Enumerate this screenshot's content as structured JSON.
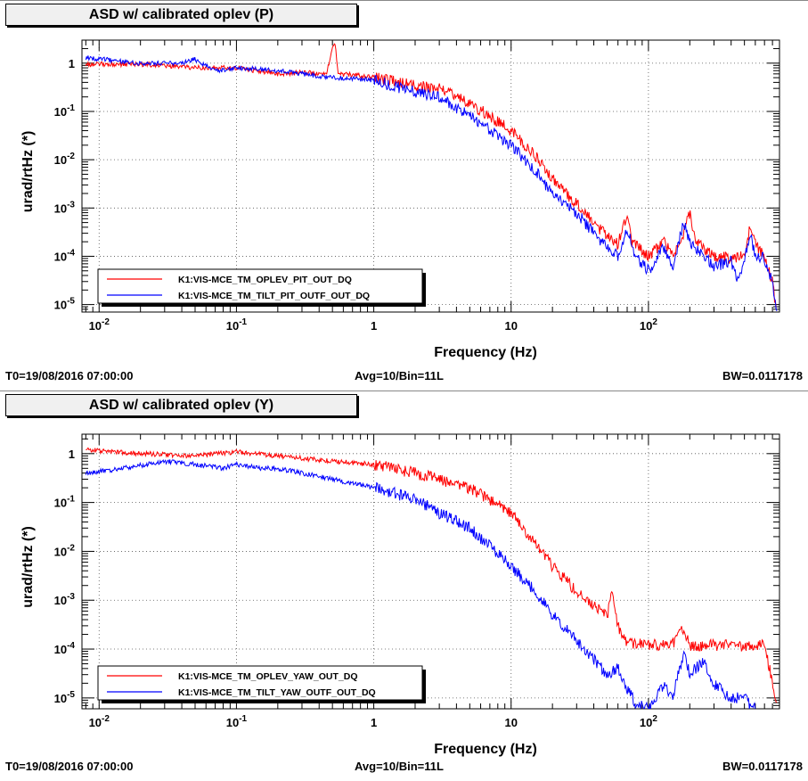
{
  "chart_data": [
    {
      "type": "line",
      "title": "ASD w/ calibrated oplev (P)",
      "xlabel": "Frequency (Hz)",
      "ylabel": "urad/rtHz (*)",
      "xscale": "log",
      "yscale": "log",
      "xlim": [
        0.0075,
        900
      ],
      "ylim": [
        7e-06,
        3
      ],
      "x_ticks": [
        {
          "value": 0.01,
          "label": "10",
          "exp": "-2"
        },
        {
          "value": 0.1,
          "label": "10",
          "exp": "-1"
        },
        {
          "value": 1,
          "label": "1",
          "exp": ""
        },
        {
          "value": 10,
          "label": "10",
          "exp": ""
        },
        {
          "value": 100,
          "label": "10",
          "exp": "2"
        }
      ],
      "y_ticks": [
        {
          "value": 1,
          "label": "1",
          "exp": ""
        },
        {
          "value": 0.1,
          "label": "10",
          "exp": "-1"
        },
        {
          "value": 0.01,
          "label": "10",
          "exp": "-2"
        },
        {
          "value": 0.001,
          "label": "10",
          "exp": "-3"
        },
        {
          "value": 0.0001,
          "label": "10",
          "exp": "-4"
        },
        {
          "value": 1e-05,
          "label": "10",
          "exp": "-5"
        }
      ],
      "grid": true,
      "legend_position": "bottom-left",
      "series": [
        {
          "name": "K1:VIS-MCE_TM_OPLEV_PIT_OUT_DQ",
          "color": "#ff0000",
          "points": [
            [
              0.008,
              0.95
            ],
            [
              0.02,
              0.95
            ],
            [
              0.05,
              0.8
            ],
            [
              0.1,
              0.8
            ],
            [
              0.2,
              0.6
            ],
            [
              0.3,
              0.65
            ],
            [
              0.45,
              0.6
            ],
            [
              0.5,
              2.0
            ],
            [
              0.52,
              3.0
            ],
            [
              0.55,
              0.6
            ],
            [
              0.8,
              0.55
            ],
            [
              1,
              0.5
            ],
            [
              2,
              0.35
            ],
            [
              3,
              0.3
            ],
            [
              5,
              0.15
            ],
            [
              10,
              0.04
            ],
            [
              15,
              0.012
            ],
            [
              20,
              0.004
            ],
            [
              30,
              0.0012
            ],
            [
              40,
              0.0005
            ],
            [
              50,
              0.00025
            ],
            [
              60,
              0.00018
            ],
            [
              65,
              0.0004
            ],
            [
              70,
              0.0008
            ],
            [
              75,
              0.0002
            ],
            [
              100,
              0.0001
            ],
            [
              130,
              0.0002
            ],
            [
              150,
              0.0001
            ],
            [
              180,
              0.0003
            ],
            [
              200,
              0.0008
            ],
            [
              220,
              0.0002
            ],
            [
              300,
              0.0001
            ],
            [
              400,
              9e-05
            ],
            [
              500,
              0.0001
            ],
            [
              550,
              0.0004
            ],
            [
              600,
              0.0002
            ],
            [
              700,
              9e-05
            ],
            [
              800,
              3e-05
            ],
            [
              850,
              8e-06
            ]
          ]
        },
        {
          "name": "K1:VIS-MCE_TM_TILT_PIT_OUTF_OUT_DQ",
          "color": "#0000ff",
          "points": [
            [
              0.008,
              1.3
            ],
            [
              0.02,
              1.0
            ],
            [
              0.04,
              1.0
            ],
            [
              0.05,
              1.2
            ],
            [
              0.07,
              0.7
            ],
            [
              0.1,
              0.8
            ],
            [
              0.2,
              0.7
            ],
            [
              0.3,
              0.6
            ],
            [
              0.5,
              0.5
            ],
            [
              1,
              0.45
            ],
            [
              2,
              0.25
            ],
            [
              3,
              0.2
            ],
            [
              5,
              0.08
            ],
            [
              10,
              0.02
            ],
            [
              15,
              0.006
            ],
            [
              20,
              0.002
            ],
            [
              30,
              0.0008
            ],
            [
              40,
              0.0003
            ],
            [
              50,
              0.00015
            ],
            [
              60,
              0.0001
            ],
            [
              70,
              0.0004
            ],
            [
              80,
              0.0001
            ],
            [
              100,
              5e-05
            ],
            [
              130,
              0.00015
            ],
            [
              150,
              6e-05
            ],
            [
              180,
              0.0005
            ],
            [
              200,
              0.0002
            ],
            [
              300,
              6e-05
            ],
            [
              400,
              8e-05
            ],
            [
              450,
              3e-05
            ],
            [
              500,
              8e-05
            ],
            [
              550,
              0.0003
            ],
            [
              600,
              0.0001
            ],
            [
              700,
              9e-05
            ],
            [
              800,
              3e-05
            ],
            [
              860,
              8e-06
            ]
          ]
        }
      ]
    },
    {
      "type": "line",
      "title": "ASD w/ calibrated oplev (Y)",
      "xlabel": "Frequency (Hz)",
      "ylabel": "urad/rtHz (*)",
      "xscale": "log",
      "yscale": "log",
      "xlim": [
        0.0075,
        900
      ],
      "ylim": [
        6e-06,
        2.5
      ],
      "x_ticks": [
        {
          "value": 0.01,
          "label": "10",
          "exp": "-2"
        },
        {
          "value": 0.1,
          "label": "10",
          "exp": "-1"
        },
        {
          "value": 1,
          "label": "1",
          "exp": ""
        },
        {
          "value": 10,
          "label": "10",
          "exp": ""
        },
        {
          "value": 100,
          "label": "10",
          "exp": "2"
        }
      ],
      "y_ticks": [
        {
          "value": 1,
          "label": "1",
          "exp": ""
        },
        {
          "value": 0.1,
          "label": "10",
          "exp": "-1"
        },
        {
          "value": 0.01,
          "label": "10",
          "exp": "-2"
        },
        {
          "value": 0.001,
          "label": "10",
          "exp": "-3"
        },
        {
          "value": 0.0001,
          "label": "10",
          "exp": "-4"
        },
        {
          "value": 1e-05,
          "label": "10",
          "exp": "-5"
        }
      ],
      "grid": true,
      "legend_position": "bottom-left",
      "series": [
        {
          "name": "K1:VIS-MCE_TM_OPLEV_YAW_OUT_DQ",
          "color": "#ff0000",
          "points": [
            [
              0.008,
              1.2
            ],
            [
              0.02,
              1.0
            ],
            [
              0.05,
              0.9
            ],
            [
              0.1,
              1.1
            ],
            [
              0.2,
              0.9
            ],
            [
              0.5,
              0.7
            ],
            [
              1,
              0.6
            ],
            [
              2,
              0.4
            ],
            [
              3,
              0.3
            ],
            [
              5,
              0.2
            ],
            [
              10,
              0.06
            ],
            [
              15,
              0.015
            ],
            [
              20,
              0.005
            ],
            [
              30,
              0.0015
            ],
            [
              40,
              0.0008
            ],
            [
              50,
              0.0005
            ],
            [
              55,
              0.0015
            ],
            [
              60,
              0.0003
            ],
            [
              70,
              0.00013
            ],
            [
              100,
              0.00012
            ],
            [
              150,
              0.00012
            ],
            [
              170,
              0.0003
            ],
            [
              200,
              0.00012
            ],
            [
              400,
              0.00012
            ],
            [
              700,
              0.00012
            ],
            [
              800,
              2e-05
            ],
            [
              860,
              7e-06
            ]
          ]
        },
        {
          "name": "K1:VIS-MCE_TM_TILT_YAW_OUTF_OUT_DQ",
          "color": "#0000ff",
          "points": [
            [
              0.008,
              0.4
            ],
            [
              0.015,
              0.5
            ],
            [
              0.03,
              0.7
            ],
            [
              0.05,
              0.6
            ],
            [
              0.08,
              0.5
            ],
            [
              0.1,
              0.6
            ],
            [
              0.15,
              0.5
            ],
            [
              0.2,
              0.5
            ],
            [
              0.3,
              0.4
            ],
            [
              0.5,
              0.3
            ],
            [
              1,
              0.2
            ],
            [
              2,
              0.12
            ],
            [
              3,
              0.06
            ],
            [
              5,
              0.03
            ],
            [
              10,
              0.005
            ],
            [
              15,
              0.0015
            ],
            [
              20,
              0.0005
            ],
            [
              30,
              0.00015
            ],
            [
              40,
              6e-05
            ],
            [
              50,
              3e-05
            ],
            [
              60,
              4e-05
            ],
            [
              70,
              1.5e-05
            ],
            [
              80,
              8e-06
            ],
            [
              100,
              6e-06
            ],
            [
              130,
              2e-05
            ],
            [
              150,
              1e-05
            ],
            [
              180,
              8e-05
            ],
            [
              200,
              3e-05
            ],
            [
              250,
              6e-05
            ],
            [
              300,
              2e-05
            ],
            [
              400,
              1e-05
            ],
            [
              500,
              1e-05
            ],
            [
              550,
              7e-06
            ],
            [
              600,
              6e-06
            ]
          ]
        }
      ]
    }
  ],
  "footer": [
    {
      "start": "T0=19/08/2016 07:00:00",
      "avg": "Avg=10/Bin=11L",
      "bw": "BW=0.0117178"
    },
    {
      "start": "T0=19/08/2016 07:00:00",
      "avg": "Avg=10/Bin=11L",
      "bw": "BW=0.0117178"
    }
  ]
}
